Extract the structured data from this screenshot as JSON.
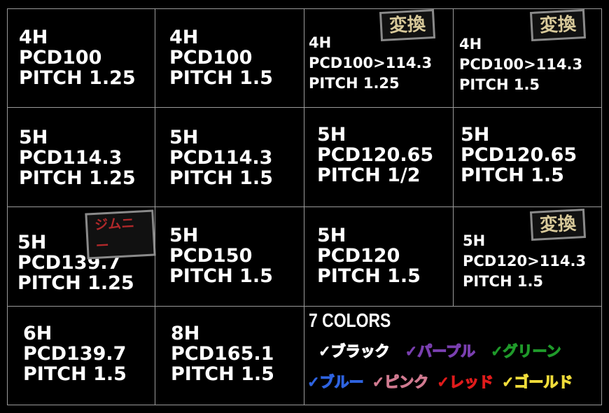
{
  "cells": [
    {
      "lines": [
        "4H",
        "PCD100",
        "PITCH 1.25"
      ]
    },
    {
      "lines": [
        "4H",
        "PCD100",
        "PITCH 1.5"
      ]
    },
    {
      "lines": [
        "4H",
        "PCD100>114.3",
        "PITCH 1.25"
      ],
      "badge": "変換"
    },
    {
      "lines": [
        "4H",
        "PCD100>114.3",
        "PITCH 1.5"
      ],
      "badge": "変換"
    },
    {
      "lines": [
        "5H",
        "PCD114.3",
        "PITCH 1.25"
      ]
    },
    {
      "lines": [
        "5H",
        "PCD114.3",
        "PITCH 1.5"
      ]
    },
    {
      "lines": [
        "5H",
        "PCD120.65",
        "PITCH 1/2"
      ]
    },
    {
      "lines": [
        "5H",
        "PCD120.65",
        "PITCH 1.5"
      ]
    },
    {
      "lines": [
        "5H",
        "PCD139.7",
        "PITCH 1.25"
      ],
      "badge": "ジムニー"
    },
    {
      "lines": [
        "5H",
        "PCD150",
        "PITCH 1.5"
      ]
    },
    {
      "lines": [
        "5H",
        "PCD120",
        "PITCH 1.5"
      ]
    },
    {
      "lines": [
        "5H",
        "PCD120>114.3",
        "PITCH 1.5"
      ],
      "badge": "変換"
    },
    {
      "lines": [
        "6H",
        "PCD139.7",
        "PITCH 1.5"
      ]
    },
    {
      "lines": [
        "8H",
        "PCD165.1",
        "PITCH 1.5"
      ]
    }
  ],
  "colors": {
    "title": "7 COLORS",
    "items": [
      {
        "label": "✓ブラック",
        "color": "#ffffff"
      },
      {
        "label": "✓パープル",
        "color": "#7a3fb0"
      },
      {
        "label": "✓グリーン",
        "color": "#1f9a2a"
      },
      {
        "label": "✓ブルー",
        "color": "#2e63e0"
      },
      {
        "label": "✓ピンク",
        "color": "#d07a90"
      },
      {
        "label": "✓レッド",
        "color": "#e01b1b"
      },
      {
        "label": "✓ゴールド",
        "color": "#f0dc3a"
      }
    ]
  }
}
